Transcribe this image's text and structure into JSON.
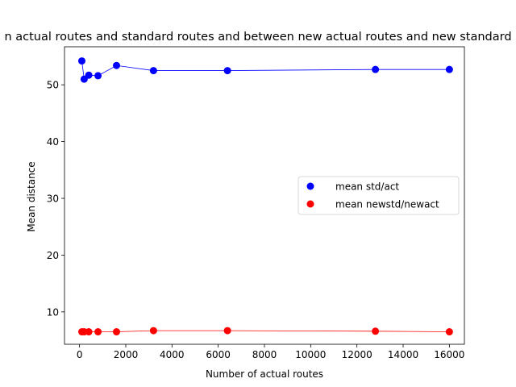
{
  "chart_data": {
    "type": "scatter",
    "title": "n actual routes and standard routes and between new actual routes and new standard",
    "xlabel": "Number of actual routes",
    "ylabel": "Mean distance",
    "xlim": [
      -650,
      16650
    ],
    "ylim": [
      4.3,
      56.7
    ],
    "xticks": [
      0,
      2000,
      4000,
      6000,
      8000,
      10000,
      12000,
      14000,
      16000
    ],
    "yticks": [
      10,
      20,
      30,
      40,
      50
    ],
    "grid": false,
    "legend_position": "center-right",
    "series": [
      {
        "name": "mean std/act",
        "color": "#0000ff",
        "x": [
          100,
          200,
          400,
          800,
          1600,
          3200,
          6400,
          12800,
          16000
        ],
        "y": [
          54.2,
          51.0,
          51.7,
          51.6,
          53.4,
          52.5,
          52.5,
          52.7,
          52.7
        ]
      },
      {
        "name": "mean newstd/newact",
        "color": "#ff0000",
        "x": [
          100,
          200,
          400,
          800,
          1600,
          3200,
          6400,
          12800,
          16000
        ],
        "y": [
          6.5,
          6.5,
          6.5,
          6.5,
          6.5,
          6.7,
          6.7,
          6.6,
          6.5
        ]
      }
    ]
  }
}
